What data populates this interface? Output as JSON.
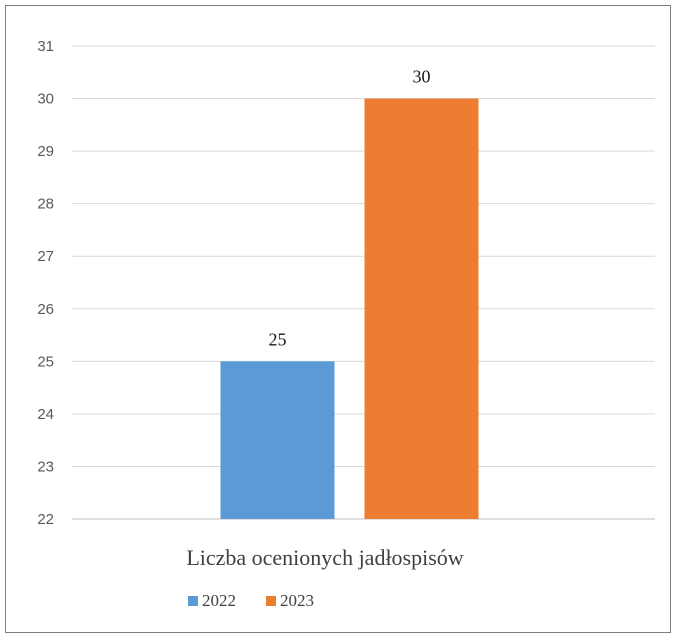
{
  "chart_data": {
    "type": "bar",
    "categories": [
      "Liczba ocenionych jadłospisów"
    ],
    "series": [
      {
        "name": "2022",
        "values": [
          25
        ],
        "color": "#5b9bd5"
      },
      {
        "name": "2023",
        "values": [
          30
        ],
        "color": "#ed7d31"
      }
    ],
    "ylim": [
      22,
      31
    ],
    "yticks": [
      22,
      23,
      24,
      25,
      26,
      27,
      28,
      29,
      30,
      31
    ],
    "grid": true,
    "data_labels": true,
    "legend_position": "bottom-left"
  }
}
